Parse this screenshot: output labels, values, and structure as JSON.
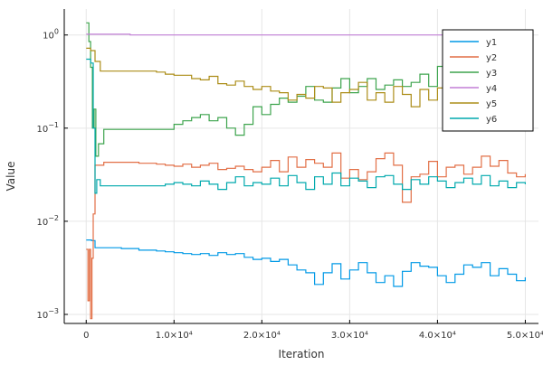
{
  "chart_data": {
    "type": "line",
    "xlabel": "Iteration",
    "ylabel": "Value",
    "x_scale": "linear",
    "y_scale": "log",
    "xlim": [
      -2500,
      51500
    ],
    "ylim": [
      0.0008,
      1.9
    ],
    "grid": true,
    "legend_position": "top-right",
    "x_ticks": [
      {
        "value": 0,
        "label": "0"
      },
      {
        "value": 10000,
        "label": "1.0×10⁴"
      },
      {
        "value": 20000,
        "label": "2.0×10⁴"
      },
      {
        "value": 30000,
        "label": "3.0×10⁴"
      },
      {
        "value": 40000,
        "label": "4.0×10⁴"
      },
      {
        "value": 50000,
        "label": "5.0×10⁴"
      }
    ],
    "y_ticks": [
      {
        "value": 0.001,
        "base": "10",
        "exp": "−3"
      },
      {
        "value": 0.01,
        "base": "10",
        "exp": "−2"
      },
      {
        "value": 0.1,
        "base": "10",
        "exp": "−1"
      },
      {
        "value": 1,
        "base": "10",
        "exp": "0"
      }
    ],
    "series": [
      {
        "name": "y1",
        "color": "#0099e6",
        "points": [
          [
            0,
            0.0063
          ],
          [
            600,
            0.0062
          ],
          [
            1000,
            0.0052
          ],
          [
            4000,
            0.0051
          ],
          [
            6000,
            0.0049
          ],
          [
            8000,
            0.0048
          ],
          [
            9000,
            0.0047
          ],
          [
            10000,
            0.0046
          ],
          [
            11000,
            0.0045
          ],
          [
            12000,
            0.0044
          ],
          [
            13000,
            0.0045
          ],
          [
            14000,
            0.0043
          ],
          [
            15000,
            0.0046
          ],
          [
            16000,
            0.0044
          ],
          [
            17000,
            0.0045
          ],
          [
            18000,
            0.0041
          ],
          [
            19000,
            0.0039
          ],
          [
            20000,
            0.004
          ],
          [
            21000,
            0.0037
          ],
          [
            22000,
            0.0039
          ],
          [
            23000,
            0.0034
          ],
          [
            24000,
            0.003
          ],
          [
            25000,
            0.0028
          ],
          [
            26000,
            0.0021
          ],
          [
            27000,
            0.0028
          ],
          [
            28000,
            0.0035
          ],
          [
            29000,
            0.0024
          ],
          [
            30000,
            0.003
          ],
          [
            31000,
            0.0036
          ],
          [
            32000,
            0.0028
          ],
          [
            33000,
            0.0022
          ],
          [
            34000,
            0.0026
          ],
          [
            35000,
            0.002
          ],
          [
            36000,
            0.0029
          ],
          [
            37000,
            0.0036
          ],
          [
            38000,
            0.0033
          ],
          [
            39000,
            0.0032
          ],
          [
            40000,
            0.0026
          ],
          [
            41000,
            0.0022
          ],
          [
            42000,
            0.0027
          ],
          [
            43000,
            0.0034
          ],
          [
            44000,
            0.0032
          ],
          [
            45000,
            0.0036
          ],
          [
            46000,
            0.0026
          ],
          [
            47000,
            0.0031
          ],
          [
            48000,
            0.0027
          ],
          [
            49000,
            0.0023
          ],
          [
            50000,
            0.0025
          ]
        ]
      },
      {
        "name": "y2",
        "color": "#e26f46",
        "points": [
          [
            0,
            0.005
          ],
          [
            200,
            0.0014
          ],
          [
            350,
            0.005
          ],
          [
            500,
            0.0009
          ],
          [
            650,
            0.004
          ],
          [
            800,
            0.012
          ],
          [
            1000,
            0.04
          ],
          [
            2000,
            0.043
          ],
          [
            4000,
            0.043
          ],
          [
            6000,
            0.042
          ],
          [
            8000,
            0.041
          ],
          [
            9000,
            0.04
          ],
          [
            10000,
            0.039
          ],
          [
            11000,
            0.041
          ],
          [
            12000,
            0.038
          ],
          [
            13000,
            0.04
          ],
          [
            14000,
            0.042
          ],
          [
            15000,
            0.036
          ],
          [
            16000,
            0.037
          ],
          [
            17000,
            0.039
          ],
          [
            18000,
            0.036
          ],
          [
            19000,
            0.034
          ],
          [
            20000,
            0.038
          ],
          [
            21000,
            0.045
          ],
          [
            22000,
            0.034
          ],
          [
            23000,
            0.049
          ],
          [
            24000,
            0.038
          ],
          [
            25000,
            0.046
          ],
          [
            26000,
            0.042
          ],
          [
            27000,
            0.038
          ],
          [
            28000,
            0.054
          ],
          [
            29000,
            0.029
          ],
          [
            30000,
            0.036
          ],
          [
            31000,
            0.028
          ],
          [
            32000,
            0.034
          ],
          [
            33000,
            0.047
          ],
          [
            34000,
            0.054
          ],
          [
            35000,
            0.04
          ],
          [
            36000,
            0.016
          ],
          [
            37000,
            0.03
          ],
          [
            38000,
            0.032
          ],
          [
            39000,
            0.044
          ],
          [
            40000,
            0.03
          ],
          [
            41000,
            0.038
          ],
          [
            42000,
            0.04
          ],
          [
            43000,
            0.032
          ],
          [
            44000,
            0.038
          ],
          [
            45000,
            0.05
          ],
          [
            46000,
            0.039
          ],
          [
            47000,
            0.045
          ],
          [
            48000,
            0.033
          ],
          [
            49000,
            0.03
          ],
          [
            50000,
            0.032
          ]
        ]
      },
      {
        "name": "y3",
        "color": "#3da44d",
        "points": [
          [
            0,
            1.35
          ],
          [
            300,
            0.85
          ],
          [
            500,
            0.45
          ],
          [
            700,
            0.1
          ],
          [
            900,
            0.16
          ],
          [
            1100,
            0.05
          ],
          [
            1400,
            0.068
          ],
          [
            2000,
            0.097
          ],
          [
            4000,
            0.097
          ],
          [
            6000,
            0.097
          ],
          [
            8000,
            0.097
          ],
          [
            9000,
            0.097
          ],
          [
            10000,
            0.11
          ],
          [
            11000,
            0.12
          ],
          [
            12000,
            0.13
          ],
          [
            13000,
            0.14
          ],
          [
            14000,
            0.12
          ],
          [
            15000,
            0.13
          ],
          [
            16000,
            0.1
          ],
          [
            17000,
            0.084
          ],
          [
            18000,
            0.11
          ],
          [
            19000,
            0.17
          ],
          [
            20000,
            0.14
          ],
          [
            21000,
            0.18
          ],
          [
            22000,
            0.21
          ],
          [
            23000,
            0.19
          ],
          [
            24000,
            0.22
          ],
          [
            25000,
            0.28
          ],
          [
            26000,
            0.2
          ],
          [
            27000,
            0.19
          ],
          [
            28000,
            0.27
          ],
          [
            29000,
            0.34
          ],
          [
            30000,
            0.24
          ],
          [
            31000,
            0.28
          ],
          [
            32000,
            0.34
          ],
          [
            33000,
            0.26
          ],
          [
            34000,
            0.29
          ],
          [
            35000,
            0.33
          ],
          [
            36000,
            0.28
          ],
          [
            37000,
            0.31
          ],
          [
            38000,
            0.38
          ],
          [
            39000,
            0.28
          ],
          [
            40000,
            0.46
          ],
          [
            41000,
            0.36
          ],
          [
            42000,
            0.47
          ],
          [
            43000,
            0.44
          ],
          [
            44000,
            0.35
          ],
          [
            45000,
            0.42
          ],
          [
            46000,
            0.51
          ],
          [
            47000,
            0.39
          ],
          [
            48000,
            0.44
          ],
          [
            49000,
            0.38
          ],
          [
            50000,
            0.45
          ]
        ]
      },
      {
        "name": "y4",
        "color": "#c27fd6",
        "points": [
          [
            0,
            1.02
          ],
          [
            5000,
            1.0
          ],
          [
            10000,
            1.0
          ],
          [
            20000,
            1.0
          ],
          [
            30000,
            1.0
          ],
          [
            40000,
            1.0
          ],
          [
            50000,
            1.0
          ]
        ]
      },
      {
        "name": "y5",
        "color": "#ac8d18",
        "points": [
          [
            0,
            0.72
          ],
          [
            500,
            0.68
          ],
          [
            1000,
            0.52
          ],
          [
            1600,
            0.41
          ],
          [
            4000,
            0.41
          ],
          [
            6000,
            0.41
          ],
          [
            8000,
            0.4
          ],
          [
            9000,
            0.38
          ],
          [
            10000,
            0.37
          ],
          [
            11000,
            0.37
          ],
          [
            12000,
            0.34
          ],
          [
            13000,
            0.33
          ],
          [
            14000,
            0.36
          ],
          [
            15000,
            0.3
          ],
          [
            16000,
            0.29
          ],
          [
            17000,
            0.32
          ],
          [
            18000,
            0.28
          ],
          [
            19000,
            0.26
          ],
          [
            20000,
            0.28
          ],
          [
            21000,
            0.25
          ],
          [
            22000,
            0.24
          ],
          [
            23000,
            0.2
          ],
          [
            24000,
            0.23
          ],
          [
            25000,
            0.21
          ],
          [
            26000,
            0.28
          ],
          [
            27000,
            0.27
          ],
          [
            28000,
            0.19
          ],
          [
            29000,
            0.24
          ],
          [
            30000,
            0.26
          ],
          [
            31000,
            0.31
          ],
          [
            32000,
            0.2
          ],
          [
            33000,
            0.24
          ],
          [
            34000,
            0.19
          ],
          [
            35000,
            0.28
          ],
          [
            36000,
            0.23
          ],
          [
            37000,
            0.17
          ],
          [
            38000,
            0.26
          ],
          [
            39000,
            0.2
          ],
          [
            40000,
            0.27
          ],
          [
            41000,
            0.21
          ],
          [
            42000,
            0.24
          ],
          [
            43000,
            0.3
          ],
          [
            44000,
            0.18
          ],
          [
            45000,
            0.22
          ],
          [
            46000,
            0.26
          ],
          [
            47000,
            0.17
          ],
          [
            48000,
            0.24
          ],
          [
            49000,
            0.21
          ],
          [
            50000,
            0.23
          ]
        ]
      },
      {
        "name": "y6",
        "color": "#00a9ad",
        "points": [
          [
            0,
            0.55
          ],
          [
            500,
            0.5
          ],
          [
            800,
            0.1
          ],
          [
            1000,
            0.02
          ],
          [
            1200,
            0.028
          ],
          [
            1600,
            0.024
          ],
          [
            4000,
            0.024
          ],
          [
            6000,
            0.024
          ],
          [
            8000,
            0.024
          ],
          [
            9000,
            0.025
          ],
          [
            10000,
            0.026
          ],
          [
            11000,
            0.025
          ],
          [
            12000,
            0.024
          ],
          [
            13000,
            0.027
          ],
          [
            14000,
            0.025
          ],
          [
            15000,
            0.022
          ],
          [
            16000,
            0.026
          ],
          [
            17000,
            0.03
          ],
          [
            18000,
            0.024
          ],
          [
            19000,
            0.026
          ],
          [
            20000,
            0.025
          ],
          [
            21000,
            0.029
          ],
          [
            22000,
            0.024
          ],
          [
            23000,
            0.031
          ],
          [
            24000,
            0.026
          ],
          [
            25000,
            0.022
          ],
          [
            26000,
            0.03
          ],
          [
            27000,
            0.025
          ],
          [
            28000,
            0.033
          ],
          [
            29000,
            0.024
          ],
          [
            30000,
            0.029
          ],
          [
            31000,
            0.027
          ],
          [
            32000,
            0.023
          ],
          [
            33000,
            0.03
          ],
          [
            34000,
            0.031
          ],
          [
            35000,
            0.025
          ],
          [
            36000,
            0.022
          ],
          [
            37000,
            0.028
          ],
          [
            38000,
            0.025
          ],
          [
            39000,
            0.03
          ],
          [
            40000,
            0.027
          ],
          [
            41000,
            0.023
          ],
          [
            42000,
            0.026
          ],
          [
            43000,
            0.029
          ],
          [
            44000,
            0.025
          ],
          [
            45000,
            0.031
          ],
          [
            46000,
            0.024
          ],
          [
            47000,
            0.027
          ],
          [
            48000,
            0.023
          ],
          [
            49000,
            0.026
          ],
          [
            50000,
            0.025
          ]
        ]
      }
    ]
  }
}
